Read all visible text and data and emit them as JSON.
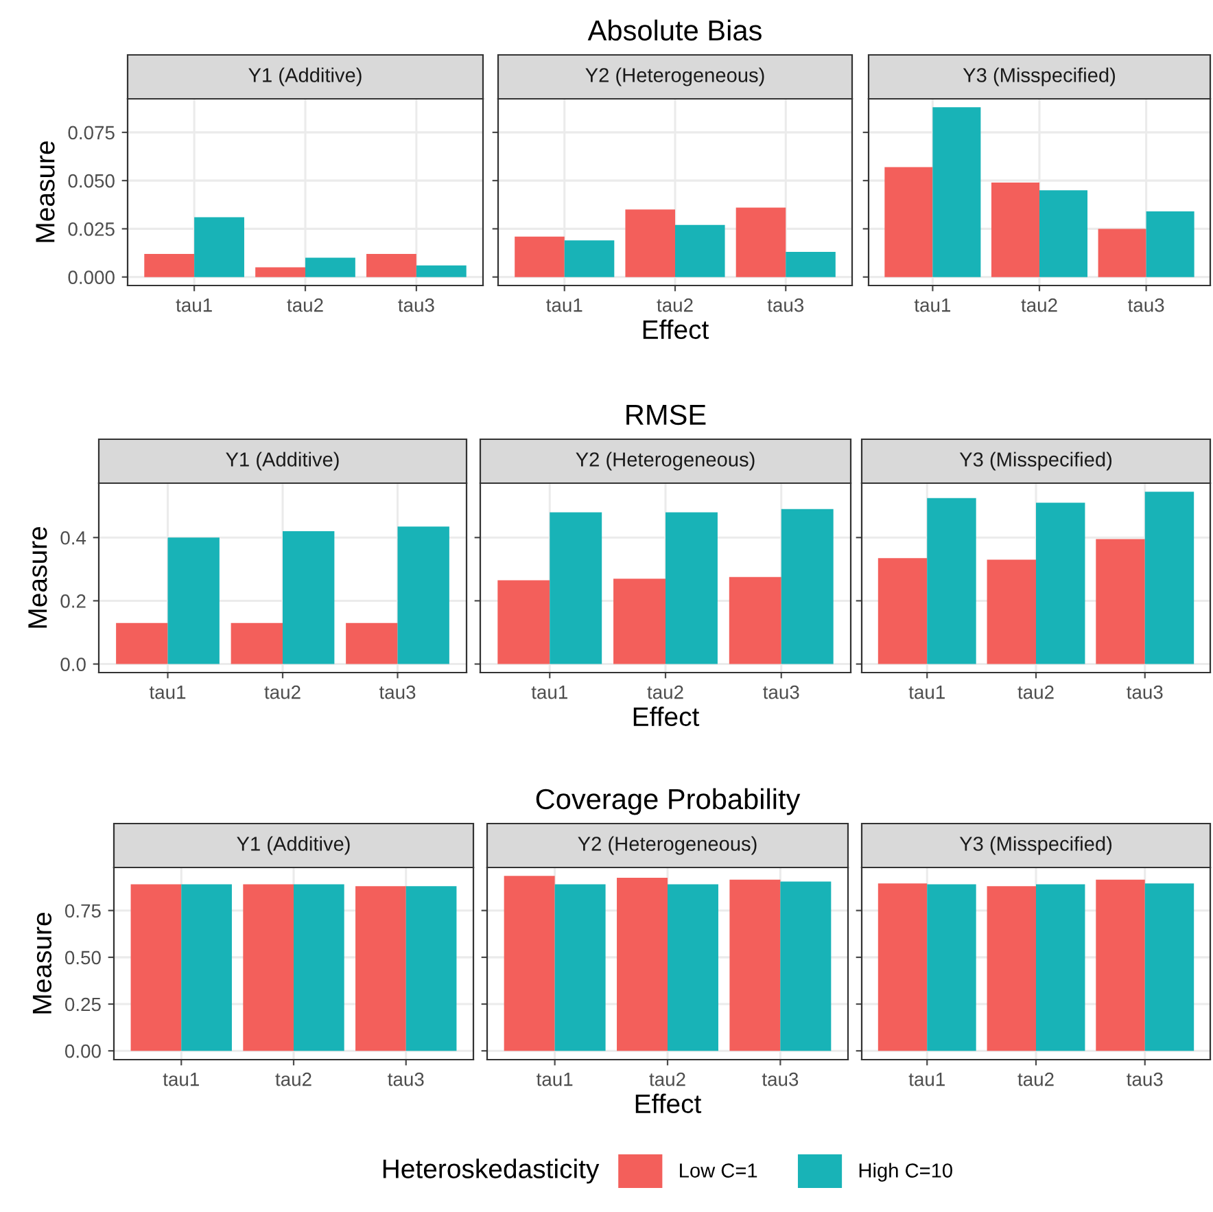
{
  "chart_data": [
    {
      "type": "bar",
      "subtitle": "Y1 (Additive)",
      "ylabel": "Measure",
      "categories": [
        "tau1",
        "tau2",
        "tau3"
      ],
      "ylim": [
        -0.0044,
        0.0924
      ],
      "yticks": [
        {
          "value": 0,
          "label": "0.000"
        },
        {
          "value": 0.025,
          "label": "0.025"
        },
        {
          "value": 0.05,
          "label": "0.050"
        },
        {
          "value": 0.075,
          "label": "0.075"
        }
      ],
      "grid": true,
      "legend": "bottom",
      "legend_title": "Heteroskedasticity",
      "series": [
        {
          "name": "Low C=1",
          "color": "#f35f5b",
          "values": [
            0.012,
            0.005,
            0.012
          ]
        },
        {
          "name": "High C=10",
          "color": "#18b3b7",
          "values": [
            0.031,
            0.01,
            0.006
          ]
        }
      ]
    },
    {
      "type": "bar",
      "title": "Absolute Bias",
      "subtitle": "Y2 (Heterogeneous)",
      "xlabel": "Effect",
      "categories": [
        "tau1",
        "tau2",
        "tau3"
      ],
      "ylim": [
        -0.0044,
        0.0924
      ],
      "yticks": [
        0,
        0.025,
        0.05,
        0.075
      ],
      "grid": true,
      "tick_labels": "x",
      "series": [
        {
          "color": "#f35f5b",
          "values": [
            0.021,
            0.035,
            0.036
          ]
        },
        {
          "color": "#18b3b7",
          "values": [
            0.019,
            0.027,
            0.013
          ]
        }
      ]
    },
    {
      "type": "bar",
      "subtitle": "Y3 (Misspecified)",
      "categories": [
        "tau1",
        "tau2",
        "tau3"
      ],
      "ylim": [
        -0.0044,
        0.0924
      ],
      "yticks": [
        0,
        0.025,
        0.05,
        0.075
      ],
      "grid": true,
      "tick_labels": "x",
      "series": [
        {
          "color": "#f35f5b",
          "values": [
            0.057,
            0.049,
            0.025
          ]
        },
        {
          "color": "#18b3b7",
          "values": [
            0.088,
            0.045,
            0.034
          ]
        }
      ]
    },
    {
      "type": "bar",
      "subtitle": "Y1 (Additive)",
      "ylabel": "Measure",
      "categories": [
        "tau1",
        "tau2",
        "tau3"
      ],
      "ylim": [
        -0.027,
        0.572
      ],
      "yticks": [
        {
          "value": 0,
          "label": "0.0"
        },
        {
          "value": 0.2,
          "label": "0.2"
        },
        {
          "value": 0.4,
          "label": "0.4"
        }
      ],
      "grid": true,
      "series": [
        {
          "color": "#f35f5b",
          "values": [
            0.13,
            0.13,
            0.13
          ]
        },
        {
          "color": "#18b3b7",
          "values": [
            0.4,
            0.42,
            0.435
          ]
        }
      ]
    },
    {
      "type": "bar",
      "title": "RMSE",
      "subtitle": "Y2 (Heterogeneous)",
      "xlabel": "Effect",
      "categories": [
        "tau1",
        "tau2",
        "tau3"
      ],
      "ylim": [
        -0.027,
        0.572
      ],
      "yticks": [
        0,
        0.2,
        0.4
      ],
      "grid": true,
      "tick_labels": "x",
      "series": [
        {
          "color": "#f35f5b",
          "values": [
            0.265,
            0.27,
            0.275
          ]
        },
        {
          "color": "#18b3b7",
          "values": [
            0.48,
            0.48,
            0.49
          ]
        }
      ]
    },
    {
      "type": "bar",
      "subtitle": "Y3 (Misspecified)",
      "categories": [
        "tau1",
        "tau2",
        "tau3"
      ],
      "ylim": [
        -0.027,
        0.572
      ],
      "yticks": [
        0,
        0.2,
        0.4
      ],
      "grid": true,
      "tick_labels": "x",
      "series": [
        {
          "color": "#f35f5b",
          "values": [
            0.335,
            0.33,
            0.395
          ]
        },
        {
          "color": "#18b3b7",
          "values": [
            0.525,
            0.51,
            0.545
          ]
        }
      ]
    },
    {
      "type": "bar",
      "subtitle": "Y1 (Additive)",
      "ylabel": "Measure",
      "categories": [
        "tau1",
        "tau2",
        "tau3"
      ],
      "ylim": [
        -0.047,
        0.98
      ],
      "yticks": [
        {
          "value": 0,
          "label": "0.00"
        },
        {
          "value": 0.25,
          "label": "0.25"
        },
        {
          "value": 0.5,
          "label": "0.50"
        },
        {
          "value": 0.75,
          "label": "0.75"
        }
      ],
      "grid": true,
      "series": [
        {
          "color": "#f35f5b",
          "values": [
            0.89,
            0.89,
            0.88
          ]
        },
        {
          "color": "#18b3b7",
          "values": [
            0.89,
            0.89,
            0.88
          ]
        }
      ]
    },
    {
      "type": "bar",
      "title": "Coverage Probability",
      "subtitle": "Y2 (Heterogeneous)",
      "xlabel": "Effect",
      "categories": [
        "tau1",
        "tau2",
        "tau3"
      ],
      "ylim": [
        -0.047,
        0.98
      ],
      "yticks": [
        0,
        0.25,
        0.5,
        0.75
      ],
      "grid": true,
      "tick_labels": "x",
      "series": [
        {
          "color": "#f35f5b",
          "values": [
            0.935,
            0.925,
            0.915
          ]
        },
        {
          "color": "#18b3b7",
          "values": [
            0.89,
            0.89,
            0.905
          ]
        }
      ]
    },
    {
      "type": "bar",
      "subtitle": "Y3 (Misspecified)",
      "categories": [
        "tau1",
        "tau2",
        "tau3"
      ],
      "ylim": [
        -0.047,
        0.98
      ],
      "yticks": [
        0,
        0.25,
        0.5,
        0.75
      ],
      "grid": true,
      "tick_labels": "x",
      "series": [
        {
          "color": "#f35f5b",
          "values": [
            0.895,
            0.88,
            0.915
          ]
        },
        {
          "color": "#18b3b7",
          "values": [
            0.89,
            0.89,
            0.895
          ]
        }
      ]
    }
  ]
}
